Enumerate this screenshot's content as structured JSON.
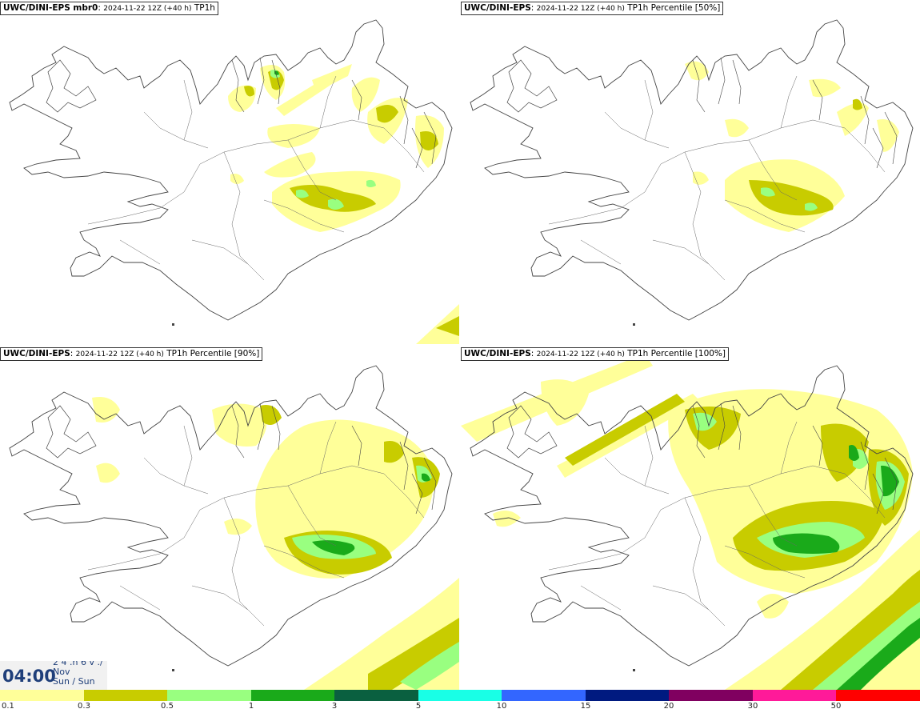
{
  "panels": [
    {
      "source": "UWC/DINI-EPS mbr0",
      "run": "2024-11-22 12Z (+40 h)",
      "field": "TP1h"
    },
    {
      "source": "UWC/DINI-EPS",
      "run": "2024-11-22 12Z (+40 h)",
      "field": "TP1h Percentile [50%]"
    },
    {
      "source": "UWC/DINI-EPS",
      "run": "2024-11-22 12Z (+40 h)",
      "field": "TP1h Percentile [90%]"
    },
    {
      "source": "UWC/DINI-EPS",
      "run": "2024-11-22 12Z (+40 h)",
      "field": "TP1h Percentile [100%]"
    }
  ],
  "time_box": {
    "time": "04:00",
    "line1": "2 4 .n 6 v ./",
    "line2": "Nov",
    "line3": "Sun / Sun"
  },
  "legend": {
    "labels": [
      "0.1",
      "0.3",
      "0.5",
      "1",
      "3",
      "5",
      "10",
      "15",
      "20",
      "30",
      "50"
    ],
    "colors": [
      "#ffff99",
      "#c8cc00",
      "#99ff80",
      "#1aaa1a",
      "#0a6040",
      "#19ffe6",
      "#3366ff",
      "#001a80",
      "#800060",
      "#ff1a99",
      "#ff0000"
    ]
  },
  "colors": {
    "coast": "#444444",
    "roads": "#666666",
    "level1": "#ffff99",
    "level2": "#c8cc00",
    "level3": "#99ff80",
    "level4": "#1aaa1a"
  }
}
